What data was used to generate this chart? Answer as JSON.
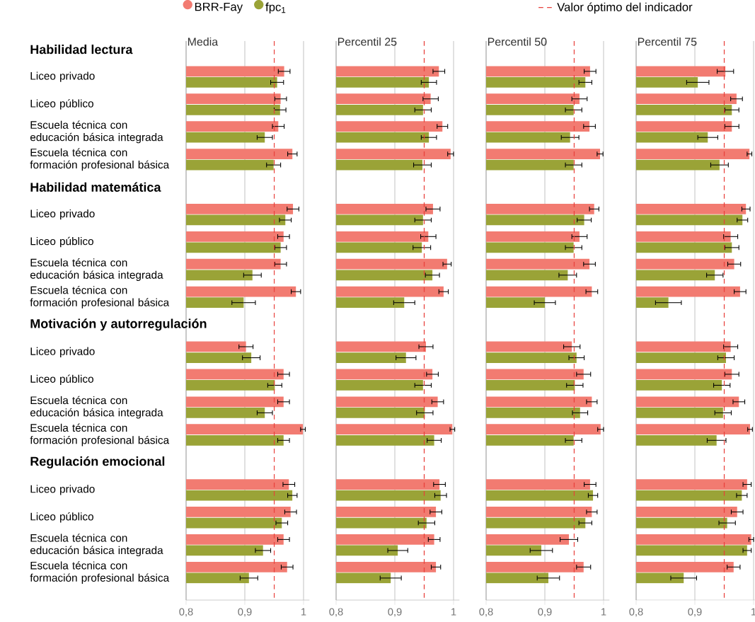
{
  "chart_data": [
    {
      "type": "bar",
      "orientation": "horizontal",
      "title": "Media",
      "legend": "top",
      "grid": "x",
      "categories": [
        "Habilidad lectura",
        "Liceo privado",
        "Liceo público",
        "Escuela técnica con educación básica integrada",
        "Escuela técnica con formación profesional básica",
        "Habilidad matemática",
        "Liceo privado",
        "Liceo público",
        "Escuela técnica con educación básica integrada",
        "Escuela técnica con formación profesional básica",
        "Motivación y autorregulación",
        "Liceo privado",
        "Liceo público",
        "Escuela técnica con educación básica integrada",
        "Escuela técnica con formación profesional básica",
        "Regulación emocional",
        "Liceo privado",
        "Liceo público",
        "Escuela técnica con educación básica integrada",
        "Escuela técnica con formación profesional básica"
      ],
      "xlim": [
        0.8,
        1.01
      ],
      "xticks": [
        {
          "value": 0.8,
          "label": "0,8"
        },
        {
          "value": 0.9,
          "label": "0,9"
        },
        {
          "value": 1,
          "label": "1"
        }
      ],
      "ref_lines": [
        {
          "axis": "x",
          "value": 0.95,
          "label": "Valor óptimo del indicador",
          "color": "#e8413c",
          "line_style": "dashed"
        }
      ],
      "series": [
        {
          "name": "BRR-Fay",
          "color": "#f27b71",
          "values": [
            null,
            0.967,
            0.961,
            0.957,
            0.981,
            null,
            0.982,
            0.966,
            0.961,
            0.987,
            null,
            0.902,
            0.966,
            0.966,
            0.999,
            null,
            0.975,
            0.978,
            0.966,
            0.972
          ],
          "errors": [
            null,
            0.01,
            0.01,
            0.01,
            0.008,
            null,
            0.01,
            0.01,
            0.01,
            0.008,
            null,
            0.012,
            0.01,
            0.01,
            0.004,
            null,
            0.01,
            0.01,
            0.01,
            0.01
          ]
        },
        {
          "name": "fpc$_{1}$",
          "color": "#9aa337",
          "values": [
            null,
            0.955,
            0.96,
            0.934,
            0.949,
            null,
            0.969,
            0.961,
            0.913,
            0.898,
            null,
            0.911,
            0.951,
            0.934,
            0.966,
            null,
            0.981,
            0.963,
            0.931,
            0.907
          ],
          "errors": [
            null,
            0.011,
            0.01,
            0.013,
            0.012,
            null,
            0.01,
            0.01,
            0.015,
            0.02,
            null,
            0.015,
            0.012,
            0.013,
            0.01,
            null,
            0.008,
            0.01,
            0.013,
            0.015
          ]
        }
      ]
    },
    {
      "type": "bar",
      "orientation": "horizontal",
      "title": "Percentil 25",
      "grid": "x",
      "tick_labels": "x",
      "xlim": [
        0.8,
        1.01
      ],
      "xticks": [
        {
          "value": 0.8,
          "label": "0,8"
        },
        {
          "value": 0.9,
          "label": "0,9"
        },
        {
          "value": 1,
          "label": "1"
        }
      ],
      "ref_lines": [
        {
          "axis": "x",
          "value": 0.95,
          "color": "#e8413c",
          "line_style": "dashed"
        }
      ],
      "series": [
        {
          "color": "#f27b71",
          "values": [
            null,
            0.975,
            0.961,
            0.981,
            0.995,
            null,
            0.965,
            0.957,
            0.989,
            0.983,
            null,
            0.953,
            0.964,
            0.973,
            0.998,
            null,
            0.976,
            0.97,
            0.967,
            0.97
          ],
          "errors": [
            null,
            0.01,
            0.013,
            0.009,
            0.005,
            null,
            0.012,
            0.013,
            0.007,
            0.008,
            null,
            0.012,
            0.01,
            0.01,
            0.004,
            null,
            0.01,
            0.01,
            0.01,
            0.008
          ]
        },
        {
          "color": "#9aa337",
          "values": [
            null,
            0.958,
            0.948,
            0.958,
            0.947,
            null,
            0.948,
            0.946,
            0.964,
            0.916,
            null,
            0.919,
            0.948,
            0.951,
            0.967,
            null,
            0.978,
            0.954,
            0.905,
            0.893
          ],
          "errors": [
            null,
            0.013,
            0.014,
            0.013,
            0.015,
            null,
            0.014,
            0.015,
            0.012,
            0.018,
            null,
            0.017,
            0.014,
            0.014,
            0.012,
            null,
            0.01,
            0.014,
            0.017,
            0.018
          ]
        }
      ]
    },
    {
      "type": "bar",
      "orientation": "horizontal",
      "title": "Percentil 50",
      "grid": "x",
      "tick_labels": "x",
      "xlim": [
        0.8,
        1.01
      ],
      "xticks": [
        {
          "value": 0.8,
          "label": "0,8"
        },
        {
          "value": 0.9,
          "label": "0,9"
        },
        {
          "value": 1,
          "label": "1"
        }
      ],
      "ref_lines": [
        {
          "axis": "x",
          "value": 0.95,
          "color": "#e8413c",
          "line_style": "dashed"
        }
      ],
      "series": [
        {
          "color": "#f27b71",
          "values": [
            null,
            0.977,
            0.959,
            0.976,
            0.994,
            null,
            0.984,
            0.959,
            0.976,
            0.98,
            null,
            0.946,
            0.966,
            0.98,
            0.995,
            null,
            0.977,
            0.98,
            0.941,
            0.966
          ],
          "errors": [
            null,
            0.01,
            0.013,
            0.01,
            0.005,
            null,
            0.008,
            0.013,
            0.01,
            0.01,
            null,
            0.014,
            0.012,
            0.009,
            0.005,
            null,
            0.01,
            0.009,
            0.015,
            0.012
          ]
        },
        {
          "color": "#9aa337",
          "values": [
            null,
            0.969,
            0.949,
            0.943,
            0.949,
            null,
            0.967,
            0.949,
            0.939,
            0.9,
            null,
            0.954,
            0.951,
            0.96,
            0.949,
            null,
            0.982,
            0.969,
            0.894,
            0.906
          ],
          "errors": [
            null,
            0.011,
            0.014,
            0.015,
            0.014,
            null,
            0.012,
            0.014,
            0.015,
            0.018,
            null,
            0.013,
            0.014,
            0.013,
            0.014,
            null,
            0.008,
            0.011,
            0.019,
            0.019
          ]
        }
      ]
    },
    {
      "type": "bar",
      "orientation": "horizontal",
      "title": "Percentil 75",
      "grid": "x",
      "tick_labels": "x",
      "xlim": [
        0.8,
        1.01
      ],
      "xticks": [
        {
          "value": 0.8,
          "label": "0,8"
        },
        {
          "value": 0.9,
          "label": "0,9"
        },
        {
          "value": 1,
          "label": "1"
        }
      ],
      "ref_lines": [
        {
          "axis": "x",
          "value": 0.95,
          "color": "#e8413c",
          "line_style": "dashed"
        }
      ],
      "series": [
        {
          "color": "#f27b71",
          "values": [
            null,
            0.952,
            0.971,
            0.963,
            0.993,
            null,
            0.987,
            0.961,
            0.967,
            0.977,
            null,
            0.961,
            0.963,
            0.975,
            0.994,
            null,
            0.989,
            0.972,
            0.996,
            0.966
          ],
          "errors": [
            null,
            0.014,
            0.01,
            0.012,
            0.004,
            null,
            0.007,
            0.012,
            0.011,
            0.01,
            null,
            0.012,
            0.012,
            0.01,
            0.004,
            null,
            0.007,
            0.01,
            0.004,
            0.011
          ]
        },
        {
          "color": "#9aa337",
          "values": [
            null,
            0.905,
            0.963,
            0.922,
            0.942,
            null,
            0.981,
            0.963,
            0.934,
            0.855,
            null,
            0.953,
            0.946,
            0.948,
            0.937,
            null,
            0.98,
            0.955,
            0.989,
            0.881
          ],
          "errors": [
            null,
            0.019,
            0.012,
            0.017,
            0.015,
            null,
            0.009,
            0.012,
            0.014,
            0.022,
            null,
            0.014,
            0.014,
            0.014,
            0.016,
            null,
            0.009,
            0.014,
            0.007,
            0.022
          ]
        }
      ]
    }
  ]
}
